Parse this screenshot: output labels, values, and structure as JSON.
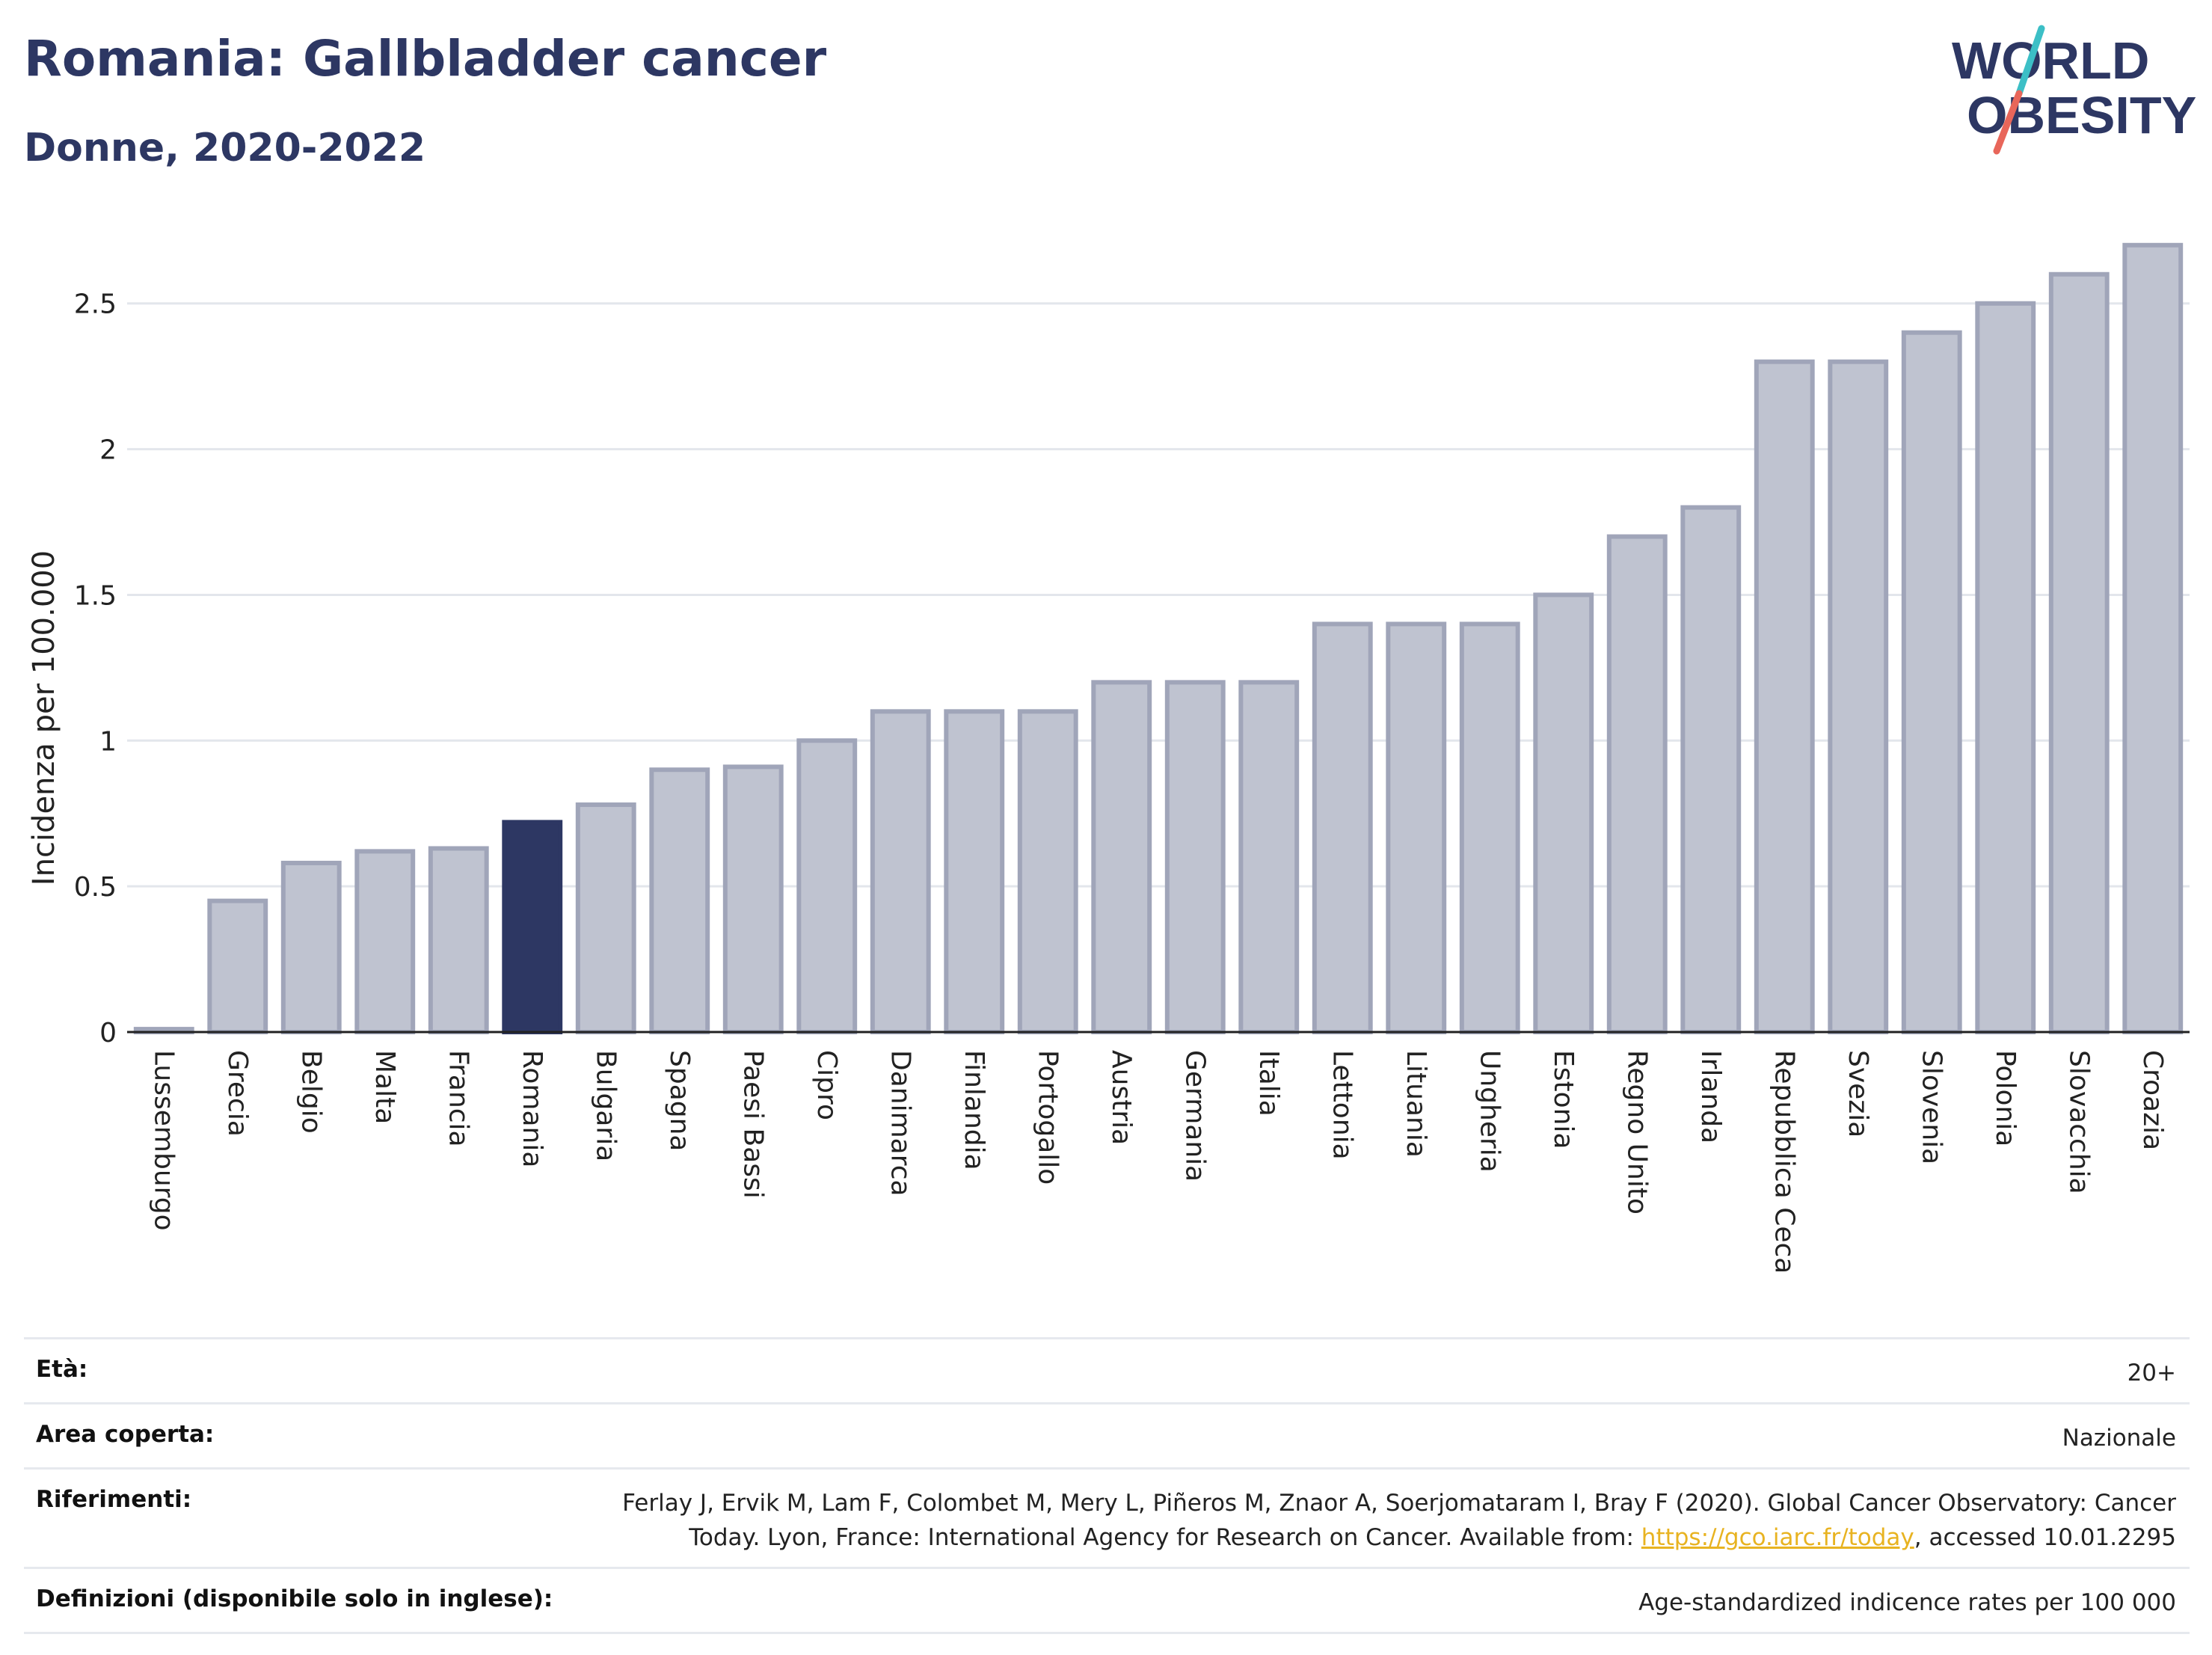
{
  "header": {
    "title": "Romania: Gallbladder cancer",
    "subtitle": "Donne, 2020-2022"
  },
  "logo": {
    "line1": "WORLD",
    "line2": "OBESITY"
  },
  "colors": {
    "highlight": "#2d3763",
    "bar_fill": "#bfc3d0",
    "bar_stroke": "#a0a5b9",
    "accent_teal": "#3cbfc6",
    "accent_red": "#e8665a"
  },
  "chart_data": {
    "type": "bar",
    "categories": [
      "Lussemburgo",
      "Grecia",
      "Belgio",
      "Malta",
      "Francia",
      "Romania",
      "Bulgaria",
      "Spagna",
      "Paesi Bassi",
      "Cipro",
      "Danimarca",
      "Finlandia",
      "Portogallo",
      "Austria",
      "Germania",
      "Italia",
      "Lettonia",
      "Lituania",
      "Ungheria",
      "Estonia",
      "Regno Unito",
      "Irlanda",
      "Repubblica Ceca",
      "Svezia",
      "Slovenia",
      "Polonia",
      "Slovacchia",
      "Croazia"
    ],
    "values": [
      0.01,
      0.45,
      0.58,
      0.62,
      0.63,
      0.72,
      0.78,
      0.9,
      0.91,
      1.0,
      1.1,
      1.1,
      1.1,
      1.2,
      1.2,
      1.2,
      1.4,
      1.4,
      1.4,
      1.5,
      1.7,
      1.8,
      2.3,
      2.3,
      2.4,
      2.5,
      2.6,
      2.7
    ],
    "highlight": "Romania",
    "ylabel": "Incidenza per 100.000",
    "xlabel": "",
    "ylim": [
      0,
      2.72
    ],
    "yticks": [
      0,
      0.5,
      1,
      1.5,
      2,
      2.5
    ],
    "ytick_labels": [
      "0",
      "0.5",
      "1",
      "1.5",
      "2",
      "2.5"
    ],
    "grid": true
  },
  "meta": {
    "eta_label": "Età:",
    "eta_value": "20+",
    "area_label": "Area coperta:",
    "area_value": "Nazionale",
    "ref_label": "Riferimenti:",
    "ref_text1": "Ferlay J, Ervik M, Lam F, Colombet M, Mery L, Piñeros M, Znaor A, Soerjomataram I, Bray F (2020). Global Cancer Observatory: Cancer Today. Lyon, France: International Agency for Research on Cancer. Available from: ",
    "ref_link": "https://gco.iarc.fr/today",
    "ref_text2": ", accessed 10.01.2295",
    "def_label": "Definizioni (disponibile solo in inglese):",
    "def_value": "Age-standardized indicence rates per 100 000"
  }
}
